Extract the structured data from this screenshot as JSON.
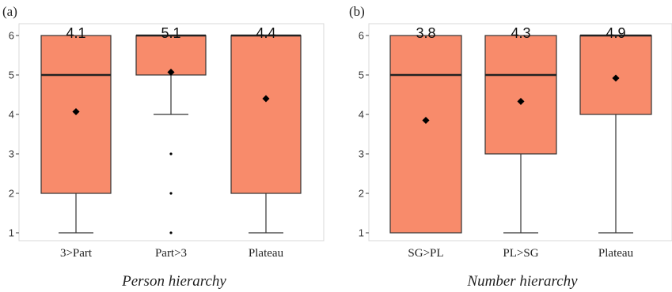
{
  "colors": {
    "box_fill": "#F88B6B",
    "box_stroke": "#333333",
    "median": "#222222",
    "frame": "#D8D8D8",
    "point": "#000000"
  },
  "chart_data": [
    {
      "type": "box",
      "panel_label": "(a)",
      "xlabel": "Person hierarchy",
      "ylabel": "",
      "ylim": [
        0.8,
        6.3
      ],
      "yticks": [
        "1",
        "2",
        "3",
        "4",
        "5",
        "6"
      ],
      "grid": false,
      "categories": [
        "3>Part",
        "Part>3",
        "Plateau"
      ],
      "boxes": [
        {
          "whisker_low": 1,
          "q1": 2,
          "median": 5,
          "q3": 6,
          "whisker_high": 6,
          "mean": 4.07,
          "mean_label": "4.1",
          "outliers": []
        },
        {
          "whisker_low": 4,
          "q1": 5,
          "median": 6,
          "q3": 6,
          "whisker_high": 6,
          "mean": 5.07,
          "mean_label": "5.1",
          "outliers": [
            3,
            2,
            1
          ]
        },
        {
          "whisker_low": 1,
          "q1": 2,
          "median": 6,
          "q3": 6,
          "whisker_high": 6,
          "mean": 4.4,
          "mean_label": "4.4",
          "outliers": []
        }
      ]
    },
    {
      "type": "box",
      "panel_label": "(b)",
      "xlabel": "Number hierarchy",
      "ylabel": "",
      "ylim": [
        0.8,
        6.3
      ],
      "yticks": [
        "1",
        "2",
        "3",
        "4",
        "5",
        "6"
      ],
      "grid": false,
      "categories": [
        "SG>PL",
        "PL>SG",
        "Plateau"
      ],
      "boxes": [
        {
          "whisker_low": 1,
          "q1": 1,
          "median": 5,
          "q3": 6,
          "whisker_high": 6,
          "mean": 3.85,
          "mean_label": "3.8",
          "outliers": []
        },
        {
          "whisker_low": 1,
          "q1": 3,
          "median": 5,
          "q3": 6,
          "whisker_high": 6,
          "mean": 4.33,
          "mean_label": "4.3",
          "outliers": []
        },
        {
          "whisker_low": 1,
          "q1": 4,
          "median": 6,
          "q3": 6,
          "whisker_high": 6,
          "mean": 4.92,
          "mean_label": "4.9",
          "outliers": []
        }
      ]
    }
  ]
}
